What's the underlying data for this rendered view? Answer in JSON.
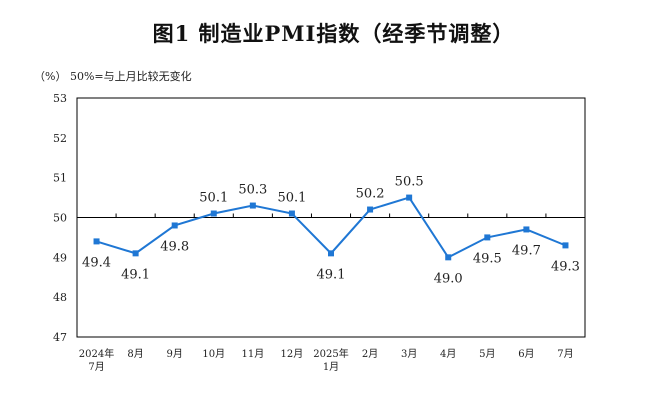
{
  "title": "图1  制造业PMI指数（经季节调整）",
  "unit_note": "（%）  50%=与上月比较无变化",
  "chart_data": {
    "type": "line",
    "title": "图1  制造业PMI指数（经季节调整）",
    "ylabel": "%",
    "ylim": [
      47,
      53
    ],
    "yticks": [
      "47",
      "48",
      "49",
      "50",
      "51",
      "52",
      "53"
    ],
    "reference_line": 50,
    "categories": [
      [
        "2024年",
        "7月"
      ],
      [
        "8月"
      ],
      [
        "9月"
      ],
      [
        "10月"
      ],
      [
        "11月"
      ],
      [
        "12月"
      ],
      [
        "2025年",
        "1月"
      ],
      [
        "2月"
      ],
      [
        "3月"
      ],
      [
        "4月"
      ],
      [
        "5月"
      ],
      [
        "6月"
      ],
      [
        "7月"
      ]
    ],
    "values": [
      49.4,
      49.1,
      49.8,
      50.1,
      50.3,
      50.1,
      49.1,
      50.2,
      50.5,
      49.0,
      49.5,
      49.7,
      49.3
    ],
    "labels": [
      "49.4",
      "49.1",
      "49.8",
      "50.1",
      "50.3",
      "50.1",
      "49.1",
      "50.2",
      "50.5",
      "49.0",
      "49.5",
      "49.7",
      "49.3"
    ],
    "label_side": [
      "below",
      "below",
      "below",
      "above",
      "above",
      "above",
      "below",
      "above",
      "above",
      "below",
      "below",
      "below",
      "below"
    ],
    "line_color": "#1f77d4"
  }
}
